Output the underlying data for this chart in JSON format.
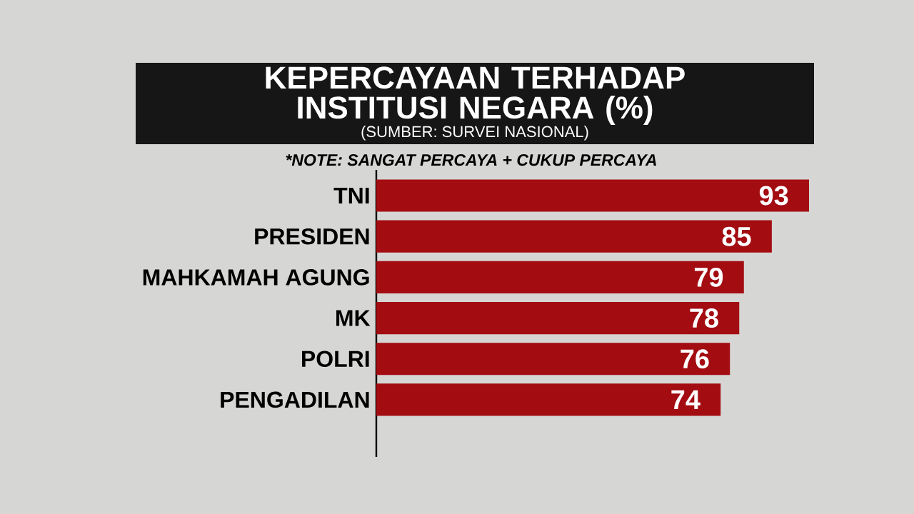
{
  "chart_data": {
    "type": "bar",
    "orientation": "horizontal",
    "title": "KEPERCAYAAN TERHADAP INSTITUSI NEGARA (%)",
    "subtitle": "(SUMBER: SURVEI NASIONAL)",
    "annotations": [
      "*NOTE: SANGAT PERCAYA + CUKUP PERCAYA"
    ],
    "categories": [
      "TNI",
      "PRESIDEN",
      "MAHKAMAH AGUNG",
      "MK",
      "POLRI",
      "PENGADILAN"
    ],
    "values": [
      93,
      85,
      79,
      78,
      76,
      74
    ],
    "color": "#a30c11",
    "data_labels": true
  }
}
